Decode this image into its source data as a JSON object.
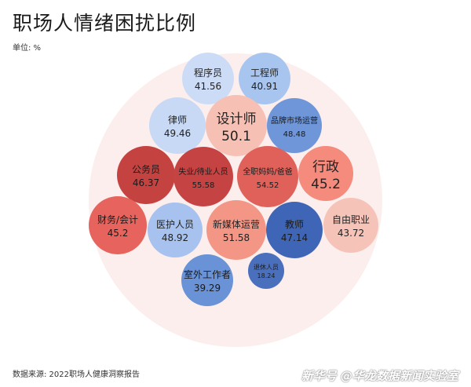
{
  "title": "职场人情绪困扰比例",
  "unit": "单位: %",
  "source": "数据来源: 2022职场人健康洞察报告",
  "credit": "新华号 @华龙数据新闻实验室",
  "chart_data": {
    "type": "bubble",
    "title": "职场人情绪困扰比例",
    "unit": "%",
    "color_scale": [
      "#3f64b4",
      "#6f96d8",
      "#c9dcf5",
      "#f7c4b8",
      "#e8665d",
      "#c44040"
    ],
    "items": [
      {
        "name": "程序员",
        "value": 41.56,
        "color": "#cddcf6"
      },
      {
        "name": "工程师",
        "value": 40.91,
        "color": "#a8c5ef"
      },
      {
        "name": "律师",
        "value": 49.46,
        "color": "#c7d9f5"
      },
      {
        "name": "设计师",
        "value": 50.1,
        "color": "#f6c0b4"
      },
      {
        "name": "品牌市场运营",
        "value": 48.48,
        "color": "#6f96d8"
      },
      {
        "name": "公务员",
        "value": 46.37,
        "color": "#c44341"
      },
      {
        "name": "失业/待业人员",
        "value": 55.58,
        "color": "#c54443"
      },
      {
        "name": "全职妈妈/爸爸",
        "value": 54.52,
        "color": "#e0615a"
      },
      {
        "name": "行政",
        "value": 45.2,
        "color": "#f48b7d"
      },
      {
        "name": "财务/会计",
        "value": 45.2,
        "color": "#e6645d"
      },
      {
        "name": "医护人员",
        "value": 48.92,
        "color": "#a7c2ee"
      },
      {
        "name": "新媒体运营",
        "value": 51.58,
        "color": "#f49686"
      },
      {
        "name": "教师",
        "value": 47.14,
        "color": "#3f66b6"
      },
      {
        "name": "自由职业",
        "value": 43.72,
        "color": "#f6c3b8"
      },
      {
        "name": "室外工作者",
        "value": 39.29,
        "color": "#6a92d6"
      },
      {
        "name": "退休人员",
        "value": 18.24,
        "color": "#4a70bd"
      }
    ]
  }
}
